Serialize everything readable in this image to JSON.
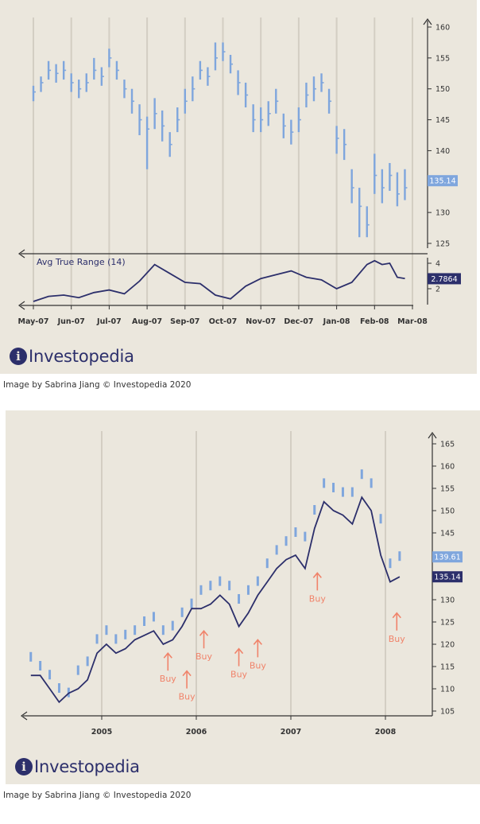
{
  "captions": [
    "Image by Sabrina Jiang © Investopedia 2020",
    "Image by Sabrina Jiang © Investopedia 2020"
  ],
  "logo": {
    "text": "Investopedia",
    "icon": "investopedia-logo-icon"
  },
  "colors": {
    "background": "#ebe7dd",
    "price_bars": "#7fa6dd",
    "dark_line": "#2c2f6b",
    "buy_arrow": "#f0836a",
    "light_badge": "#7fa6dd"
  },
  "chart_data": [
    {
      "type": "line",
      "title": "",
      "x_ticks": [
        "May-07",
        "Jun-07",
        "Jul-07",
        "Aug-07",
        "Sep-07",
        "Oct-07",
        "Nov-07",
        "Dec-07",
        "Jan-08",
        "Feb-08",
        "Mar-08"
      ],
      "y_ticks": [
        125,
        130,
        135,
        140,
        145,
        150,
        155,
        160
      ],
      "ylim": [
        122,
        162
      ],
      "series": [
        {
          "name": "",
          "style": "price-bars",
          "x": [
            0.0,
            0.2,
            0.4,
            0.6,
            0.8,
            1.0,
            1.2,
            1.4,
            1.6,
            1.8,
            2.0,
            2.2,
            2.4,
            2.6,
            2.8,
            3.0,
            3.2,
            3.4,
            3.6,
            3.8,
            4.0,
            4.2,
            4.4,
            4.6,
            4.8,
            5.0,
            5.2,
            5.4,
            5.6,
            5.8,
            6.0,
            6.2,
            6.4,
            6.6,
            6.8,
            7.0,
            7.2,
            7.4,
            7.6,
            7.8,
            8.0,
            8.2,
            8.4,
            8.6,
            8.8,
            9.0,
            9.2,
            9.4,
            9.6,
            9.8
          ],
          "y": [
            149.5,
            151,
            153,
            152.5,
            153,
            151,
            150,
            151,
            153,
            152,
            155,
            153,
            150,
            148,
            145,
            143.5,
            146,
            144,
            141,
            145,
            148,
            150,
            153,
            152,
            155,
            156,
            154,
            151,
            149,
            145,
            145,
            146,
            148,
            144,
            143,
            145,
            149,
            150,
            151,
            148,
            142,
            141,
            134,
            131,
            128,
            136,
            134,
            136,
            133,
            134
          ],
          "high": [
            150.5,
            152,
            154.5,
            154,
            154.5,
            152.5,
            151.5,
            152.5,
            155,
            153.5,
            156.5,
            154.5,
            151.5,
            150,
            147.5,
            145.5,
            148.5,
            146.5,
            143,
            147,
            150,
            152,
            154.5,
            153.5,
            157.5,
            157.5,
            155.5,
            153,
            151,
            147.5,
            147,
            148,
            150,
            146,
            145,
            147,
            151,
            152,
            152.5,
            150,
            144,
            143.5,
            137,
            134,
            131,
            139.5,
            137,
            138,
            136.5,
            137
          ],
          "low": [
            148,
            149.5,
            151.5,
            151,
            151.5,
            149.5,
            148.5,
            149.5,
            151.5,
            150.5,
            153.5,
            151.5,
            148.5,
            146,
            142.5,
            137,
            143.5,
            141.5,
            139,
            143,
            146,
            148,
            151.5,
            150.5,
            153,
            154.5,
            152.5,
            149,
            147,
            143,
            143,
            144,
            146,
            142,
            141,
            143,
            147,
            148,
            149.5,
            146,
            139.5,
            138.5,
            131.5,
            126,
            126,
            133,
            131.5,
            133.5,
            131,
            132
          ]
        }
      ],
      "current_price": 135.14
    },
    {
      "type": "line",
      "title": "Avg True Range (14)",
      "y_ticks": [
        2,
        4
      ],
      "ylim": [
        0.5,
        5
      ],
      "series": [
        {
          "name": "",
          "x": [
            0.0,
            0.4,
            0.8,
            1.2,
            1.6,
            2.0,
            2.4,
            2.8,
            3.2,
            3.6,
            4.0,
            4.4,
            4.8,
            5.2,
            5.6,
            6.0,
            6.4,
            6.8,
            7.2,
            7.6,
            8.0,
            8.4,
            8.8,
            9.0,
            9.2,
            9.4,
            9.6,
            9.8
          ],
          "y": [
            1.0,
            1.4,
            1.5,
            1.3,
            1.7,
            1.9,
            1.6,
            2.6,
            3.9,
            3.2,
            2.5,
            2.4,
            1.5,
            1.2,
            2.2,
            2.8,
            3.1,
            3.4,
            2.9,
            2.7,
            2.0,
            2.5,
            3.9,
            4.2,
            3.9,
            4.0,
            2.9,
            2.8
          ]
        }
      ],
      "current_value": 2.7864
    },
    {
      "type": "line",
      "title": "",
      "x_ticks": [
        "2005",
        "2006",
        "2007",
        "2008"
      ],
      "y_ticks": [
        105,
        110,
        115,
        120,
        125,
        130,
        135,
        140,
        145,
        150,
        155,
        160,
        165
      ],
      "ylim": [
        102,
        168
      ],
      "series": [
        {
          "name": "",
          "style": "price-bars",
          "x": [
            2004.25,
            2004.35,
            2004.45,
            2004.55,
            2004.65,
            2004.75,
            2004.85,
            2004.95,
            2005.05,
            2005.15,
            2005.25,
            2005.35,
            2005.45,
            2005.55,
            2005.65,
            2005.75,
            2005.85,
            2005.95,
            2006.05,
            2006.15,
            2006.25,
            2006.35,
            2006.45,
            2006.55,
            2006.65,
            2006.75,
            2006.85,
            2006.95,
            2007.05,
            2007.15,
            2007.25,
            2007.35,
            2007.45,
            2007.55,
            2007.65,
            2007.75,
            2007.85,
            2007.95,
            2008.05,
            2008.15
          ],
          "y": [
            117,
            115,
            113,
            110,
            109,
            114,
            116,
            121,
            123,
            121,
            122,
            123,
            125,
            126,
            123,
            124,
            127,
            129,
            132,
            133,
            134,
            133,
            130,
            132,
            134,
            138,
            141,
            143,
            145,
            144,
            150,
            156,
            155,
            154,
            154,
            158,
            156,
            148,
            138,
            139.61
          ]
        },
        {
          "name": "",
          "style": "dark-line",
          "x": [
            2004.25,
            2004.35,
            2004.45,
            2004.55,
            2004.65,
            2004.75,
            2004.85,
            2004.95,
            2005.05,
            2005.15,
            2005.25,
            2005.35,
            2005.45,
            2005.55,
            2005.65,
            2005.75,
            2005.85,
            2005.95,
            2006.05,
            2006.15,
            2006.25,
            2006.35,
            2006.45,
            2006.55,
            2006.65,
            2006.75,
            2006.85,
            2006.95,
            2007.05,
            2007.15,
            2007.25,
            2007.35,
            2007.45,
            2007.55,
            2007.65,
            2007.75,
            2007.85,
            2007.95,
            2008.05,
            2008.15
          ],
          "y": [
            113,
            113,
            110,
            107,
            109,
            110,
            112,
            118,
            120,
            118,
            119,
            121,
            122,
            123,
            120,
            121,
            124,
            128,
            128,
            129,
            131,
            129,
            124,
            127,
            131,
            134,
            137,
            139,
            140,
            137,
            146,
            152,
            150,
            149,
            147,
            153,
            150,
            140,
            134,
            135.14
          ]
        }
      ],
      "annotations": [
        {
          "label": "Buy",
          "x": 2005.7,
          "y": 118
        },
        {
          "label": "Buy",
          "x": 2005.9,
          "y": 114
        },
        {
          "label": "Buy",
          "x": 2006.08,
          "y": 123
        },
        {
          "label": "Buy",
          "x": 2006.45,
          "y": 119
        },
        {
          "label": "Buy",
          "x": 2006.65,
          "y": 121
        },
        {
          "label": "Buy",
          "x": 2007.28,
          "y": 136
        },
        {
          "label": "Buy",
          "x": 2008.12,
          "y": 127
        }
      ],
      "badges": [
        139.61,
        135.14
      ]
    }
  ]
}
